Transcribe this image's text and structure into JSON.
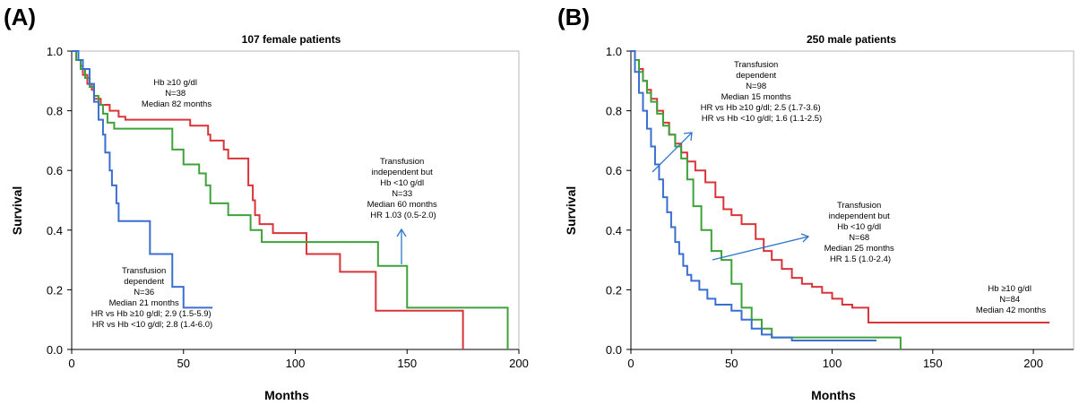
{
  "chart_data": [
    {
      "type": "line",
      "panel_label": "(A)",
      "title": "107 female patients",
      "xlabel": "Months",
      "ylabel": "Survival",
      "xlim": [
        0,
        200
      ],
      "ylim": [
        0,
        1.0
      ],
      "x_ticks": [
        0,
        50,
        100,
        150,
        200
      ],
      "y_ticks": [
        "0.0",
        "0.2",
        "0.4",
        "0.6",
        "0.8",
        "1.0"
      ],
      "grid": false,
      "series": [
        {
          "color": "#d9343a",
          "x": [
            0,
            2,
            4,
            5,
            7,
            9,
            10,
            13,
            17,
            21,
            24,
            50,
            53,
            61,
            62,
            68,
            70,
            77,
            79,
            81,
            82,
            84,
            90,
            105,
            120,
            136,
            175,
            175
          ],
          "y": [
            1.0,
            0.97,
            0.95,
            0.92,
            0.89,
            0.87,
            0.84,
            0.82,
            0.8,
            0.78,
            0.77,
            0.77,
            0.75,
            0.72,
            0.7,
            0.67,
            0.64,
            0.64,
            0.55,
            0.5,
            0.45,
            0.42,
            0.39,
            0.32,
            0.26,
            0.13,
            0.13,
            0.0
          ]
        },
        {
          "color": "#3ea23a",
          "x": [
            0,
            2,
            4,
            6,
            8,
            10,
            12,
            14,
            16,
            19,
            22,
            30,
            40,
            45,
            50,
            57,
            60,
            62,
            70,
            80,
            85,
            137,
            150,
            195,
            195
          ],
          "y": [
            1.0,
            0.97,
            0.94,
            0.91,
            0.88,
            0.85,
            0.82,
            0.79,
            0.76,
            0.74,
            0.74,
            0.74,
            0.74,
            0.67,
            0.62,
            0.59,
            0.55,
            0.49,
            0.45,
            0.4,
            0.36,
            0.28,
            0.14,
            0.14,
            0.0
          ]
        },
        {
          "color": "#3a6fd1",
          "x": [
            0,
            3,
            5,
            8,
            10,
            12,
            14,
            15,
            17,
            18,
            20,
            21,
            24,
            27,
            35,
            45,
            50,
            63
          ],
          "y": [
            1.0,
            0.97,
            0.94,
            0.89,
            0.83,
            0.77,
            0.72,
            0.66,
            0.6,
            0.55,
            0.49,
            0.43,
            0.43,
            0.43,
            0.32,
            0.21,
            0.14,
            0.14
          ]
        }
      ],
      "annotations": [
        {
          "lines": [
            "Hb ≥10 g/dl",
            "N=38",
            "Median 82 months"
          ]
        },
        {
          "lines": [
            "Transfusion",
            "independent but",
            "Hb <10 g/dl",
            "N=33",
            "Median 60 months",
            "HR 1.03 (0.5-2.0)"
          ]
        },
        {
          "lines": [
            "Transfusion",
            "dependent",
            "N=36",
            "Median 21 months",
            "HR vs Hb ≥10 g/dl; 2.9 (1.5-5.9)",
            "HR vs Hb <10 g/dl; 2.8 (1.4-6.0)"
          ]
        }
      ]
    },
    {
      "type": "line",
      "panel_label": "(B)",
      "title": "250 male patients",
      "xlabel": "Months",
      "ylabel": "Survival",
      "xlim": [
        0,
        220
      ],
      "ylim": [
        0,
        1.0
      ],
      "x_ticks": [
        0,
        50,
        100,
        150,
        200
      ],
      "y_ticks": [
        "0.0",
        "0.2",
        "0.4",
        "0.6",
        "0.8",
        "1.0"
      ],
      "grid": false,
      "series": [
        {
          "color": "#d9343a",
          "x": [
            0,
            2,
            4,
            6,
            8,
            10,
            13,
            16,
            19,
            22,
            25,
            28,
            32,
            37,
            42,
            46,
            50,
            55,
            62,
            66,
            70,
            75,
            80,
            85,
            90,
            95,
            100,
            105,
            110,
            118,
            208
          ],
          "y": [
            1.0,
            0.97,
            0.94,
            0.9,
            0.87,
            0.84,
            0.8,
            0.76,
            0.72,
            0.69,
            0.66,
            0.63,
            0.6,
            0.56,
            0.51,
            0.47,
            0.45,
            0.42,
            0.37,
            0.33,
            0.3,
            0.27,
            0.24,
            0.22,
            0.21,
            0.19,
            0.17,
            0.15,
            0.14,
            0.09,
            0.09
          ]
        },
        {
          "color": "#3ea23a",
          "x": [
            0,
            2,
            4,
            6,
            8,
            10,
            13,
            16,
            19,
            22,
            25,
            28,
            31,
            35,
            40,
            45,
            50,
            55,
            60,
            65,
            70,
            120,
            134,
            134
          ],
          "y": [
            1.0,
            0.97,
            0.93,
            0.9,
            0.86,
            0.83,
            0.79,
            0.75,
            0.72,
            0.68,
            0.64,
            0.57,
            0.48,
            0.4,
            0.33,
            0.3,
            0.22,
            0.14,
            0.1,
            0.07,
            0.04,
            0.04,
            0.04,
            0.0
          ]
        },
        {
          "color": "#3a6fd1",
          "x": [
            0,
            2,
            4,
            6,
            8,
            10,
            12,
            14,
            16,
            18,
            20,
            22,
            24,
            26,
            28,
            30,
            34,
            38,
            42,
            50,
            55,
            60,
            65,
            70,
            80,
            122
          ],
          "y": [
            1.0,
            0.93,
            0.86,
            0.8,
            0.74,
            0.68,
            0.62,
            0.57,
            0.51,
            0.46,
            0.41,
            0.36,
            0.32,
            0.28,
            0.25,
            0.23,
            0.2,
            0.17,
            0.15,
            0.13,
            0.1,
            0.07,
            0.05,
            0.04,
            0.03,
            0.03
          ]
        }
      ],
      "annotations": [
        {
          "lines": [
            "Transfusion",
            "dependent",
            "N=98",
            "Median 15 months",
            "HR vs Hb ≥10 g/dl; 2.5 (1.7-3.6)",
            "HR vs Hb <10 g/dl; 1.6 (1.1-2.5)"
          ]
        },
        {
          "lines": [
            "Transfusion",
            "independent but",
            "Hb <10 g/dl",
            "N=68",
            "Median 25 months",
            "HR 1.5 (1.0-2.4)"
          ]
        },
        {
          "lines": [
            "Hb ≥10 g/dl",
            "N=84",
            "Median 42 months"
          ]
        }
      ]
    }
  ]
}
